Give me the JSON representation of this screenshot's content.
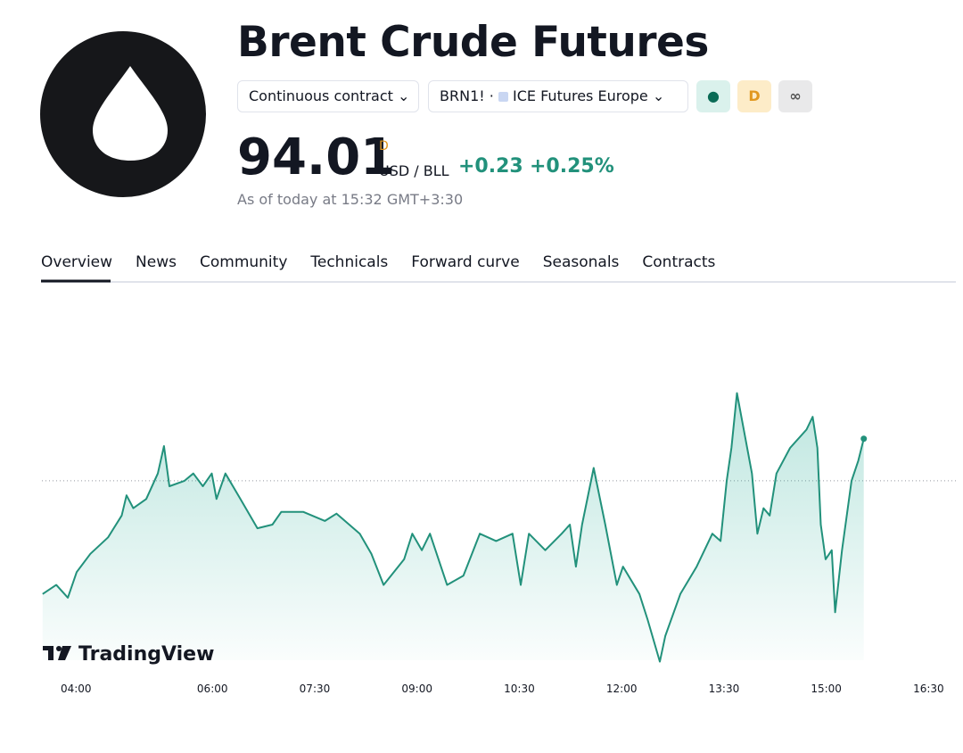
{
  "header": {
    "title": "Brent Crude Futures",
    "contract": "Continuous contract",
    "symbol": "BRN1!",
    "exchange": "ICE Futures Europe",
    "badges": [
      "D",
      "∞"
    ],
    "price": "94.01",
    "price_flag": "D",
    "currency": "USD / BLL",
    "change": "+0.23",
    "change_percent": "+0.25%",
    "timestamp": "As of today at 15:32 GMT+3:30"
  },
  "tabs": [
    "Overview",
    "News",
    "Community",
    "Technicals",
    "Forward curve",
    "Seasonals",
    "Contracts"
  ],
  "chart_data": {
    "type": "line",
    "watermark": "TradingView",
    "color": "#22917b",
    "reference_line": 93.78,
    "x": [
      3.51,
      3.71,
      3.88,
      4.01,
      4.21,
      4.47,
      4.67,
      4.74,
      4.84,
      5.03,
      5.2,
      5.29,
      5.37,
      5.59,
      5.72,
      5.86,
      5.99,
      6.06,
      6.19,
      6.41,
      6.66,
      6.88,
      7.01,
      7.33,
      7.65,
      7.82,
      8.16,
      8.33,
      8.51,
      8.81,
      8.93,
      9.07,
      9.19,
      9.44,
      9.68,
      9.92,
      10.16,
      10.4,
      10.52,
      10.64,
      10.88,
      11.12,
      11.24,
      11.33,
      11.42,
      11.59,
      11.76,
      11.93,
      12.02,
      12.26,
      12.38,
      12.56,
      12.64,
      12.86,
      13.1,
      13.33,
      13.45,
      13.54,
      13.61,
      13.69,
      13.77,
      13.91,
      13.99,
      14.08,
      14.17,
      14.27,
      14.47,
      14.71,
      14.8,
      14.87,
      14.92,
      14.99,
      15.08,
      15.13,
      15.23,
      15.37,
      15.47,
      15.55
    ],
    "values": [
      93.16,
      93.21,
      93.14,
      93.28,
      93.38,
      93.47,
      93.59,
      93.7,
      93.63,
      93.68,
      93.82,
      93.97,
      93.75,
      93.78,
      93.82,
      93.75,
      93.82,
      93.68,
      93.82,
      93.68,
      93.52,
      93.54,
      93.61,
      93.61,
      93.56,
      93.6,
      93.49,
      93.38,
      93.21,
      93.35,
      93.49,
      93.4,
      93.49,
      93.21,
      93.26,
      93.49,
      93.45,
      93.49,
      93.21,
      93.49,
      93.4,
      93.49,
      93.54,
      93.31,
      93.54,
      93.85,
      93.54,
      93.21,
      93.31,
      93.16,
      93.02,
      92.79,
      92.93,
      93.16,
      93.31,
      93.49,
      93.45,
      93.78,
      93.96,
      94.26,
      94.1,
      93.82,
      93.49,
      93.63,
      93.59,
      93.82,
      93.96,
      94.06,
      94.13,
      93.96,
      93.54,
      93.35,
      93.4,
      93.06,
      93.4,
      93.78,
      93.89,
      94.01
    ],
    "xlim": [
      3.5,
      16.9
    ],
    "ylim": [
      92.7,
      94.8
    ],
    "xticks": [
      {
        "value": 4,
        "label": "04:00"
      },
      {
        "value": 6,
        "label": "06:00"
      },
      {
        "value": 7.5,
        "label": "07:30"
      },
      {
        "value": 9,
        "label": "09:00"
      },
      {
        "value": 10.5,
        "label": "10:30"
      },
      {
        "value": 12,
        "label": "12:00"
      },
      {
        "value": 13.5,
        "label": "13:30"
      },
      {
        "value": 15,
        "label": "15:00"
      },
      {
        "value": 16.5,
        "label": "16:30"
      }
    ]
  }
}
